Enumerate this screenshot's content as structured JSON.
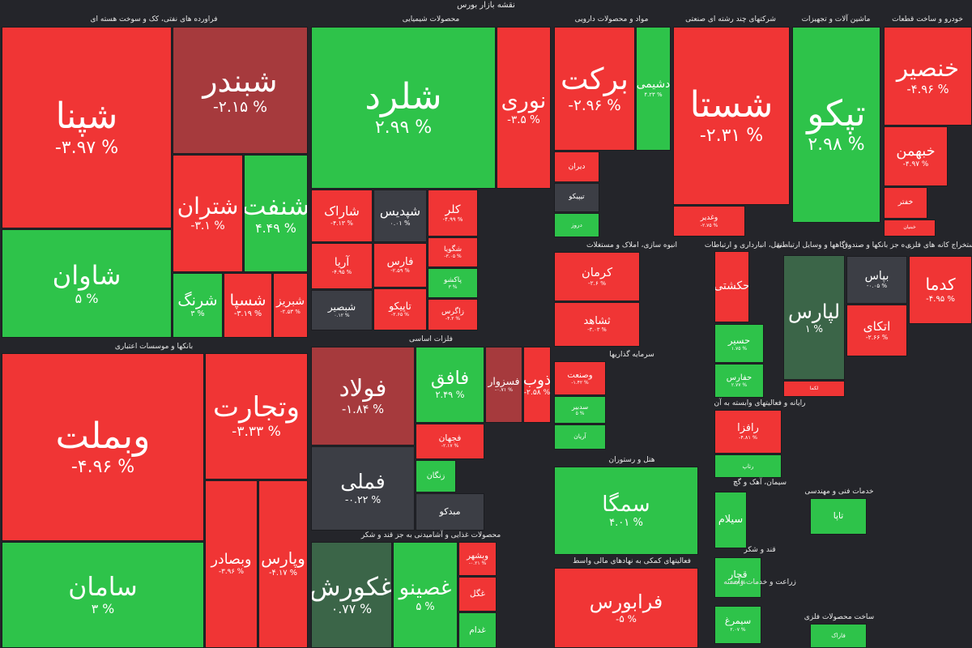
{
  "title": "نقشه بازار بورس",
  "sectors": [
    {
      "name": "فراورده های نفتی، کک و سوخت هسته ای",
      "stocks": [
        {
          "name": "شپنا",
          "change": "-۳.۹۷ %"
        },
        {
          "name": "شاوان",
          "change": "۵ %"
        },
        {
          "name": "شبندر",
          "change": "-۲.۱۵ %"
        },
        {
          "name": "شتران",
          "change": "-۳.۱ %"
        },
        {
          "name": "شنفت",
          "change": "۴.۴۹ %"
        },
        {
          "name": "شرنگ",
          "change": "۳ %"
        },
        {
          "name": "شسپا",
          "change": "-۳.۱۹ %"
        },
        {
          "name": "شبریز",
          "change": "-۲.۵۳ %"
        }
      ]
    },
    {
      "name": "بانکها و موسسات اعتباری",
      "stocks": [
        {
          "name": "وبملت",
          "change": "-۴.۹۶ %"
        },
        {
          "name": "سامان",
          "change": "۳ %"
        },
        {
          "name": "وتجارت",
          "change": "-۳.۳۳ %"
        },
        {
          "name": "وبصادر",
          "change": "-۳.۹۶ %"
        },
        {
          "name": "وپارس",
          "change": "-۴.۱۷ %"
        }
      ]
    },
    {
      "name": "محصولات شیمیایی",
      "stocks": [
        {
          "name": "شلرد",
          "change": "۲.۹۹ %"
        },
        {
          "name": "نوری",
          "change": "-۳.۵ %"
        },
        {
          "name": "شاراک",
          "change": "-۴.۱۳ %"
        },
        {
          "name": "شپدیس",
          "change": "۰.۰۱ %"
        },
        {
          "name": "کلر",
          "change": "-۴.۹۹ %"
        },
        {
          "name": "آریا",
          "change": "-۴.۹۵ %"
        },
        {
          "name": "فارس",
          "change": "-۲.۵۹ %"
        },
        {
          "name": "شگویا",
          "change": "-۳.۰۵ %"
        },
        {
          "name": "پاکشو",
          "change": "۳ %"
        },
        {
          "name": "زاگرس",
          "change": "-۴.۲ %"
        },
        {
          "name": "شبصیر",
          "change": "۰.۱۲ %"
        },
        {
          "name": "تاپیکو",
          "change": "-۲.۶۵ %"
        }
      ]
    },
    {
      "name": "فلزات اساسی",
      "stocks": [
        {
          "name": "فولاد",
          "change": "-۱.۸۴ %"
        },
        {
          "name": "فملی",
          "change": "-۰.۲۲ %"
        },
        {
          "name": "فافق",
          "change": "۲.۴۹ %"
        },
        {
          "name": "فسزوار",
          "change": "-۰.۷۱ %"
        },
        {
          "name": "ذوب",
          "change": "-۲.۵۸ %"
        },
        {
          "name": "فجهان",
          "change": "-۲.۱۷ %"
        },
        {
          "name": "زنگان"
        },
        {
          "name": "مبدکو"
        }
      ]
    },
    {
      "name": "محصولات غذایی و آشامیدنی به جز قند و شکر",
      "stocks": [
        {
          "name": "غکورش",
          "change": "۰.۷۷ %"
        },
        {
          "name": "غصینو",
          "change": "۵ %"
        },
        {
          "name": "وبشهر",
          "change": "-۰.۲۱ %"
        },
        {
          "name": "غگل"
        },
        {
          "name": "غدام"
        }
      ]
    },
    {
      "name": "مواد و محصولات دارویی",
      "stocks": [
        {
          "name": "برکت",
          "change": "-۲.۹۶ %"
        },
        {
          "name": "دشیمی",
          "change": "۴.۲۳ %"
        },
        {
          "name": "دیران"
        },
        {
          "name": "تیپیکو"
        },
        {
          "name": "دروز"
        }
      ]
    },
    {
      "name": "شرکتهای چند رشته ای صنعتی",
      "stocks": [
        {
          "name": "شستا",
          "change": "-۲.۳۱ %"
        },
        {
          "name": "وغدیر",
          "change": "-۲.۷۵ %"
        }
      ]
    },
    {
      "name": "ماشین آلات و تجهیزات",
      "stocks": [
        {
          "name": "تپکو",
          "change": "۲.۹۸ %"
        }
      ]
    },
    {
      "name": "خودرو و ساخت قطعات",
      "stocks": [
        {
          "name": "خنصیر",
          "change": "-۴.۹۶ %"
        },
        {
          "name": "خبهمن",
          "change": "-۴.۹۷ %"
        },
        {
          "name": "خفتر"
        },
        {
          "name": "خبنیان"
        }
      ]
    },
    {
      "name": "انبوه سازی، املاک و مستغلات",
      "stocks": [
        {
          "name": "کرمان",
          "change": "-۲.۶ %"
        },
        {
          "name": "ثشاهد",
          "change": "-۳.۰۳ %"
        }
      ]
    },
    {
      "name": "سرمایه گذاریها",
      "stocks": [
        {
          "name": "وصنعت",
          "change": "-۱.۴۲ %"
        },
        {
          "name": "سدبیر",
          "change": "۵ %"
        },
        {
          "name": "آریان"
        }
      ]
    },
    {
      "name": "هتل و رستوران",
      "stocks": [
        {
          "name": "سمگا",
          "change": "۴.۰۱ %"
        }
      ]
    },
    {
      "name": "فعالیتهای کمکی به نهادهای مالی واسط",
      "stocks": [
        {
          "name": "فرابورس",
          "change": "-۵ %"
        }
      ]
    },
    {
      "name": "...نقل، انبارداری و ارتباطات",
      "stocks": [
        {
          "name": "حکشتی"
        },
        {
          "name": "حسیر",
          "change": "۱.۷۵ %"
        },
        {
          "name": "حفارس",
          "change": "۲.۷۷ %"
        }
      ]
    },
    {
      "name": "...گاهها و وسایل ارتباطی",
      "stocks": [
        {
          "name": "لپارس",
          "change": "۱ %"
        },
        {
          "name": "لکما"
        }
      ]
    },
    {
      "name": "...ه جز بانکها و صندوق",
      "stocks": [
        {
          "name": "بپاس",
          "change": "-۰.۰۵ %"
        },
        {
          "name": "اتکای",
          "change": "-۲.۶۶ %"
        }
      ]
    },
    {
      "name": "استخراج کانه های فلزی",
      "stocks": [
        {
          "name": "کدما",
          "change": "-۴.۹۵ %"
        }
      ]
    },
    {
      "name": "رایانه و فعالیتهای وابسته به آن",
      "stocks": [
        {
          "name": "رافزا",
          "change": "-۴.۸۱ %"
        },
        {
          "name": "رتاپ"
        }
      ]
    },
    {
      "name": "سیمان، آهک و گچ",
      "stocks": [
        {
          "name": "سیلام"
        }
      ]
    },
    {
      "name": "قند و شکر",
      "stocks": [
        {
          "name": "قچار",
          "change": "۲.۳۸ %"
        }
      ]
    },
    {
      "name": "زراعت و خدمات وابسته",
      "stocks": [
        {
          "name": "سیمرغ",
          "change": "۲.۰۷ %"
        }
      ]
    },
    {
      "name": "خدمات فنی و مهندسی",
      "stocks": [
        {
          "name": "تاپا"
        }
      ]
    },
    {
      "name": "ساخت محصولات فلزی",
      "stocks": [
        {
          "name": "فاراک"
        }
      ]
    }
  ]
}
